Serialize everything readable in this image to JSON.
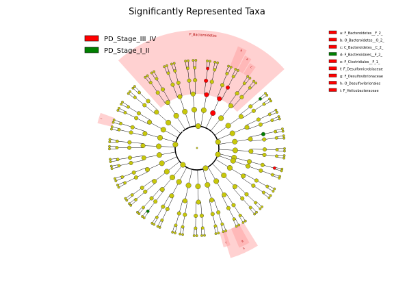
{
  "chart_data": {
    "type": "cladogram",
    "title": "Significantly Represented Taxa",
    "legend": {
      "placement": "top-left",
      "groups": [
        {
          "name": "PD_Stage_III_IV",
          "color": "#ff0000"
        },
        {
          "name": "PD_Stage_I_II",
          "color": "#008000"
        }
      ]
    },
    "biomarker_key": {
      "placement": "top-right",
      "items": [
        {
          "key": "a: F_Bacteroidetes__F_2_",
          "group_color": "#ff0000"
        },
        {
          "key": "b: O_Bacteroidetes__O_2_",
          "group_color": "#ff0000"
        },
        {
          "key": "c: C_Bacteroidetes__C_2_",
          "group_color": "#ff0000"
        },
        {
          "key": "d: F_Bacteroidales__F_2_",
          "group_color": "#008000"
        },
        {
          "key": "e: F_Clostridiales__F_1_",
          "group_color": "#ff0000"
        },
        {
          "key": "f: F_Desulfomicrobiaceae",
          "group_color": "#ff0000"
        },
        {
          "key": "g: F_Desulfovibrionaceae",
          "group_color": "#ff0000"
        },
        {
          "key": "h: O_Desulfovibrionales",
          "group_color": "#ff0000"
        },
        {
          "key": "i: F_Helicobacteraceae",
          "group_color": "#ff0000"
        }
      ]
    },
    "highlighted_clades": [
      {
        "label": "P_Bacteroidetes",
        "group_color": "#ff0000"
      },
      {
        "label": "a",
        "group_color": "#ff0000"
      },
      {
        "label": "b",
        "group_color": "#ff0000"
      },
      {
        "label": "c",
        "group_color": "#ff0000"
      },
      {
        "label": "d",
        "group_color": "#008000"
      },
      {
        "label": "e",
        "group_color": "#ff0000"
      },
      {
        "label": "f",
        "group_color": "#ff0000"
      },
      {
        "label": "g",
        "group_color": "#ff0000"
      },
      {
        "label": "h",
        "group_color": "#ff0000"
      },
      {
        "label": "i",
        "group_color": "#ff0000"
      }
    ],
    "node_colors": {
      "non_significant": "#c8c80a",
      "edge": "#000000"
    }
  }
}
